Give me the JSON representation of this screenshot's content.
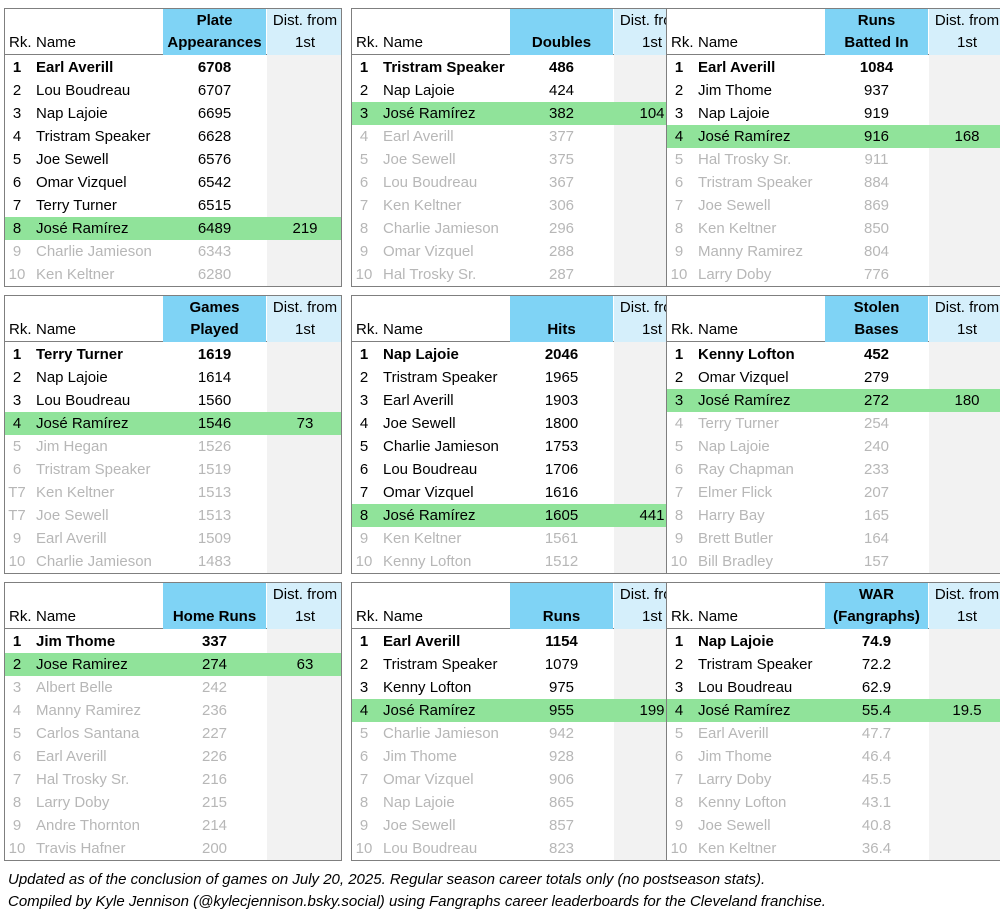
{
  "chart_data": [
    {
      "type": "table",
      "stat_label": [
        "Plate",
        "Appearances"
      ],
      "dist_label": [
        "Dist. from",
        "1st"
      ],
      "rk_label": "Rk.",
      "name_label": "Name",
      "highlight_dist": "219",
      "rows": [
        {
          "rank": "1",
          "name": "Earl Averill",
          "value": "6708",
          "style": "top"
        },
        {
          "rank": "2",
          "name": "Lou Boudreau",
          "value": "6707",
          "style": "normal"
        },
        {
          "rank": "3",
          "name": "Nap Lajoie",
          "value": "6695",
          "style": "normal"
        },
        {
          "rank": "4",
          "name": "Tristram Speaker",
          "value": "6628",
          "style": "normal"
        },
        {
          "rank": "5",
          "name": "Joe Sewell",
          "value": "6576",
          "style": "normal"
        },
        {
          "rank": "6",
          "name": "Omar Vizquel",
          "value": "6542",
          "style": "normal"
        },
        {
          "rank": "7",
          "name": "Terry Turner",
          "value": "6515",
          "style": "normal"
        },
        {
          "rank": "8",
          "name": "José Ramírez",
          "value": "6489",
          "style": "hl"
        },
        {
          "rank": "9",
          "name": "Charlie Jamieson",
          "value": "6343",
          "style": "dim"
        },
        {
          "rank": "10",
          "name": "Ken Keltner",
          "value": "6280",
          "style": "dim"
        }
      ]
    },
    {
      "type": "table",
      "stat_label": [
        "",
        "Doubles"
      ],
      "dist_label": [
        "Dist. from",
        "1st"
      ],
      "rk_label": "Rk.",
      "name_label": "Name",
      "highlight_dist": "104",
      "rows": [
        {
          "rank": "1",
          "name": "Tristram Speaker",
          "value": "486",
          "style": "top"
        },
        {
          "rank": "2",
          "name": "Nap Lajoie",
          "value": "424",
          "style": "normal"
        },
        {
          "rank": "3",
          "name": "José Ramírez",
          "value": "382",
          "style": "hl"
        },
        {
          "rank": "4",
          "name": "Earl Averill",
          "value": "377",
          "style": "dim"
        },
        {
          "rank": "5",
          "name": "Joe Sewell",
          "value": "375",
          "style": "dim"
        },
        {
          "rank": "6",
          "name": "Lou Boudreau",
          "value": "367",
          "style": "dim"
        },
        {
          "rank": "7",
          "name": "Ken Keltner",
          "value": "306",
          "style": "dim"
        },
        {
          "rank": "8",
          "name": "Charlie Jamieson",
          "value": "296",
          "style": "dim"
        },
        {
          "rank": "9",
          "name": "Omar Vizquel",
          "value": "288",
          "style": "dim"
        },
        {
          "rank": "10",
          "name": "Hal Trosky Sr.",
          "value": "287",
          "style": "dim"
        }
      ]
    },
    {
      "type": "table",
      "stat_label": [
        "Runs",
        "Batted In"
      ],
      "dist_label": [
        "Dist. from",
        "1st"
      ],
      "rk_label": "Rk.",
      "name_label": "Name",
      "highlight_dist": "168",
      "rows": [
        {
          "rank": "1",
          "name": "Earl Averill",
          "value": "1084",
          "style": "top"
        },
        {
          "rank": "2",
          "name": "Jim Thome",
          "value": "937",
          "style": "normal"
        },
        {
          "rank": "3",
          "name": "Nap Lajoie",
          "value": "919",
          "style": "normal"
        },
        {
          "rank": "4",
          "name": "José Ramírez",
          "value": "916",
          "style": "hl"
        },
        {
          "rank": "5",
          "name": "Hal Trosky Sr.",
          "value": "911",
          "style": "dim"
        },
        {
          "rank": "6",
          "name": "Tristram Speaker",
          "value": "884",
          "style": "dim"
        },
        {
          "rank": "7",
          "name": "Joe Sewell",
          "value": "869",
          "style": "dim"
        },
        {
          "rank": "8",
          "name": "Ken Keltner",
          "value": "850",
          "style": "dim"
        },
        {
          "rank": "9",
          "name": "Manny Ramirez",
          "value": "804",
          "style": "dim"
        },
        {
          "rank": "10",
          "name": "Larry Doby",
          "value": "776",
          "style": "dim"
        }
      ]
    },
    {
      "type": "table",
      "stat_label": [
        "Games",
        "Played"
      ],
      "dist_label": [
        "Dist. from",
        "1st"
      ],
      "rk_label": "Rk.",
      "name_label": "Name",
      "highlight_dist": "73",
      "rows": [
        {
          "rank": "1",
          "name": "Terry Turner",
          "value": "1619",
          "style": "top"
        },
        {
          "rank": "2",
          "name": "Nap Lajoie",
          "value": "1614",
          "style": "normal"
        },
        {
          "rank": "3",
          "name": "Lou Boudreau",
          "value": "1560",
          "style": "normal"
        },
        {
          "rank": "4",
          "name": "José Ramírez",
          "value": "1546",
          "style": "hl"
        },
        {
          "rank": "5",
          "name": "Jim Hegan",
          "value": "1526",
          "style": "dim"
        },
        {
          "rank": "6",
          "name": "Tristram Speaker",
          "value": "1519",
          "style": "dim"
        },
        {
          "rank": "T7",
          "name": "Ken Keltner",
          "value": "1513",
          "style": "dim"
        },
        {
          "rank": "T7",
          "name": "Joe Sewell",
          "value": "1513",
          "style": "dim"
        },
        {
          "rank": "9",
          "name": "Earl Averill",
          "value": "1509",
          "style": "dim"
        },
        {
          "rank": "10",
          "name": "Charlie Jamieson",
          "value": "1483",
          "style": "dim"
        }
      ]
    },
    {
      "type": "table",
      "stat_label": [
        "",
        "Hits"
      ],
      "dist_label": [
        "Dist. from",
        "1st"
      ],
      "rk_label": "Rk.",
      "name_label": "Name",
      "highlight_dist": "441",
      "rows": [
        {
          "rank": "1",
          "name": "Nap Lajoie",
          "value": "2046",
          "style": "top"
        },
        {
          "rank": "2",
          "name": "Tristram Speaker",
          "value": "1965",
          "style": "normal"
        },
        {
          "rank": "3",
          "name": "Earl Averill",
          "value": "1903",
          "style": "normal"
        },
        {
          "rank": "4",
          "name": "Joe Sewell",
          "value": "1800",
          "style": "normal"
        },
        {
          "rank": "5",
          "name": "Charlie Jamieson",
          "value": "1753",
          "style": "normal"
        },
        {
          "rank": "6",
          "name": "Lou Boudreau",
          "value": "1706",
          "style": "normal"
        },
        {
          "rank": "7",
          "name": "Omar Vizquel",
          "value": "1616",
          "style": "normal"
        },
        {
          "rank": "8",
          "name": "José Ramírez",
          "value": "1605",
          "style": "hl"
        },
        {
          "rank": "9",
          "name": "Ken Keltner",
          "value": "1561",
          "style": "dim"
        },
        {
          "rank": "10",
          "name": "Kenny Lofton",
          "value": "1512",
          "style": "dim"
        }
      ]
    },
    {
      "type": "table",
      "stat_label": [
        "Stolen",
        "Bases"
      ],
      "dist_label": [
        "Dist. from",
        "1st"
      ],
      "rk_label": "Rk.",
      "name_label": "Name",
      "highlight_dist": "180",
      "rows": [
        {
          "rank": "1",
          "name": "Kenny Lofton",
          "value": "452",
          "style": "top"
        },
        {
          "rank": "2",
          "name": "Omar Vizquel",
          "value": "279",
          "style": "normal"
        },
        {
          "rank": "3",
          "name": "José Ramírez",
          "value": "272",
          "style": "hl"
        },
        {
          "rank": "4",
          "name": "Terry Turner",
          "value": "254",
          "style": "dim"
        },
        {
          "rank": "5",
          "name": "Nap Lajoie",
          "value": "240",
          "style": "dim"
        },
        {
          "rank": "6",
          "name": "Ray Chapman",
          "value": "233",
          "style": "dim"
        },
        {
          "rank": "7",
          "name": "Elmer Flick",
          "value": "207",
          "style": "dim"
        },
        {
          "rank": "8",
          "name": "Harry Bay",
          "value": "165",
          "style": "dim"
        },
        {
          "rank": "9",
          "name": "Brett Butler",
          "value": "164",
          "style": "dim"
        },
        {
          "rank": "10",
          "name": "Bill Bradley",
          "value": "157",
          "style": "dim"
        }
      ]
    },
    {
      "type": "table",
      "stat_label": [
        "",
        "Home Runs"
      ],
      "dist_label": [
        "Dist. from",
        "1st"
      ],
      "rk_label": "Rk.",
      "name_label": "Name",
      "highlight_dist": "63",
      "rows": [
        {
          "rank": "1",
          "name": "Jim Thome",
          "value": "337",
          "style": "top"
        },
        {
          "rank": "2",
          "name": "Jose Ramirez",
          "value": "274",
          "style": "hl"
        },
        {
          "rank": "3",
          "name": "Albert Belle",
          "value": "242",
          "style": "dim"
        },
        {
          "rank": "4",
          "name": "Manny Ramirez",
          "value": "236",
          "style": "dim"
        },
        {
          "rank": "5",
          "name": "Carlos Santana",
          "value": "227",
          "style": "dim"
        },
        {
          "rank": "6",
          "name": "Earl Averill",
          "value": "226",
          "style": "dim"
        },
        {
          "rank": "7",
          "name": "Hal Trosky Sr.",
          "value": "216",
          "style": "dim"
        },
        {
          "rank": "8",
          "name": "Larry Doby",
          "value": "215",
          "style": "dim"
        },
        {
          "rank": "9",
          "name": "Andre Thornton",
          "value": "214",
          "style": "dim"
        },
        {
          "rank": "10",
          "name": "Travis Hafner",
          "value": "200",
          "style": "dim"
        }
      ]
    },
    {
      "type": "table",
      "stat_label": [
        "",
        "Runs"
      ],
      "dist_label": [
        "Dist. from",
        "1st"
      ],
      "rk_label": "Rk.",
      "name_label": "Name",
      "highlight_dist": "199",
      "rows": [
        {
          "rank": "1",
          "name": "Earl Averill",
          "value": "1154",
          "style": "top"
        },
        {
          "rank": "2",
          "name": "Tristram Speaker",
          "value": "1079",
          "style": "normal"
        },
        {
          "rank": "3",
          "name": "Kenny Lofton",
          "value": "975",
          "style": "normal"
        },
        {
          "rank": "4",
          "name": "José Ramírez",
          "value": "955",
          "style": "hl"
        },
        {
          "rank": "5",
          "name": "Charlie Jamieson",
          "value": "942",
          "style": "dim"
        },
        {
          "rank": "6",
          "name": "Jim Thome",
          "value": "928",
          "style": "dim"
        },
        {
          "rank": "7",
          "name": "Omar Vizquel",
          "value": "906",
          "style": "dim"
        },
        {
          "rank": "8",
          "name": "Nap Lajoie",
          "value": "865",
          "style": "dim"
        },
        {
          "rank": "9",
          "name": "Joe Sewell",
          "value": "857",
          "style": "dim"
        },
        {
          "rank": "10",
          "name": "Lou Boudreau",
          "value": "823",
          "style": "dim"
        }
      ]
    },
    {
      "type": "table",
      "stat_label": [
        "WAR",
        "(Fangraphs)"
      ],
      "dist_label": [
        "Dist. from",
        "1st"
      ],
      "rk_label": "Rk.",
      "name_label": "Name",
      "highlight_dist": "19.5",
      "rows": [
        {
          "rank": "1",
          "name": "Nap Lajoie",
          "value": "74.9",
          "style": "top"
        },
        {
          "rank": "2",
          "name": "Tristram Speaker",
          "value": "72.2",
          "style": "normal"
        },
        {
          "rank": "3",
          "name": "Lou Boudreau",
          "value": "62.9",
          "style": "normal"
        },
        {
          "rank": "4",
          "name": "José Ramírez",
          "value": "55.4",
          "style": "hl"
        },
        {
          "rank": "5",
          "name": "Earl Averill",
          "value": "47.7",
          "style": "dim"
        },
        {
          "rank": "6",
          "name": "Jim Thome",
          "value": "46.4",
          "style": "dim"
        },
        {
          "rank": "7",
          "name": "Larry Doby",
          "value": "45.5",
          "style": "dim"
        },
        {
          "rank": "8",
          "name": "Kenny Lofton",
          "value": "43.1",
          "style": "dim"
        },
        {
          "rank": "9",
          "name": "Joe Sewell",
          "value": "40.8",
          "style": "dim"
        },
        {
          "rank": "10",
          "name": "Ken Keltner",
          "value": "36.4",
          "style": "dim"
        }
      ]
    }
  ],
  "footer": {
    "line1": "Updated as of the conclusion of games on July 20, 2025. Regular season career totals only (no postseason stats).",
    "line2": "Compiled by Kyle Jennison (@kylecjennison.bsky.social) using Fangraphs career leaderboards for the Cleveland franchise."
  },
  "colors": {
    "stat_header": "#7fd3f5",
    "dist_header": "#d5effb",
    "highlight_row": "#90e39a",
    "dist_column": "#f2f2f2",
    "dim_text": "#b7b7b7",
    "border": "#7f7f7f"
  }
}
